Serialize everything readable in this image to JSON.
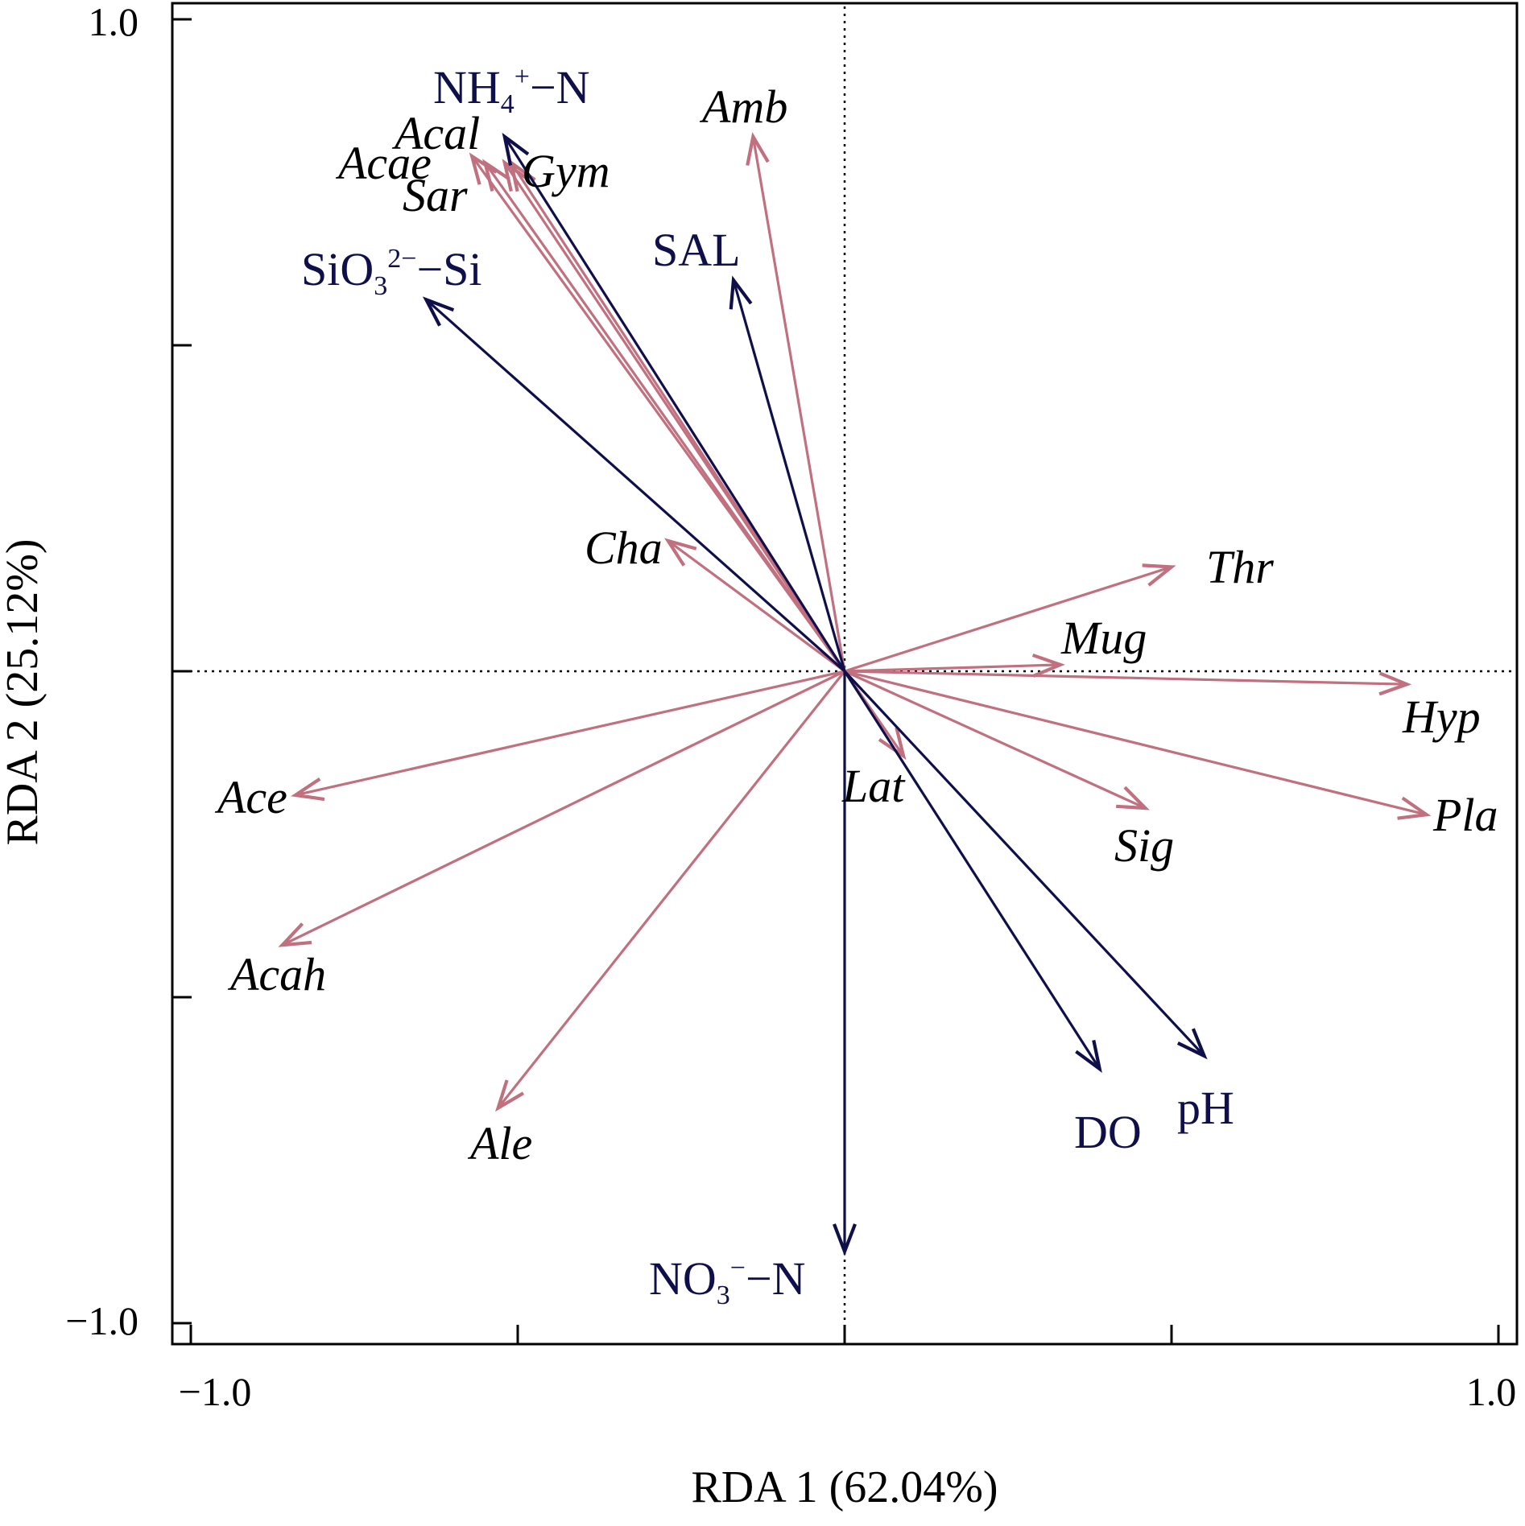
{
  "chart_data": {
    "type": "biplot",
    "xlabel": "RDA 1 (62.04%)",
    "ylabel": "RDA 2 (25.12%)",
    "xlim": [
      -1.0,
      1.0
    ],
    "ylim": [
      -1.0,
      1.0
    ],
    "xticks": [
      -1.0,
      -0.5,
      0,
      0.5,
      1.0
    ],
    "yticks": [
      -1.0,
      -0.5,
      0,
      0.5,
      1.0
    ],
    "xtick_labels": [
      "−1.0",
      "1.0"
    ],
    "ytick_labels": [
      "1.0",
      "−1.0"
    ],
    "zero_lines": "dotted",
    "colors": {
      "environment": "#0f0f4a",
      "species": "#c0707e"
    },
    "environment": [
      {
        "label_parts": [
          {
            "t": "NH"
          },
          {
            "t": "4",
            "sub": true
          },
          {
            "t": "+",
            "sup": true
          },
          {
            "t": "−N"
          }
        ],
        "x": -0.52,
        "y": 0.82
      },
      {
        "label_parts": [
          {
            "t": "SiO"
          },
          {
            "t": "3",
            "sub": true
          },
          {
            "t": "2−",
            "sup": true
          },
          {
            "t": "−Si"
          }
        ],
        "x": -0.64,
        "y": 0.57
      },
      {
        "label_parts": [
          {
            "t": "SAL"
          }
        ],
        "x": -0.17,
        "y": 0.6
      },
      {
        "label_parts": [
          {
            "t": "DO"
          }
        ],
        "x": 0.39,
        "y": -0.61
      },
      {
        "label_parts": [
          {
            "t": "pH"
          }
        ],
        "x": 0.55,
        "y": -0.59
      },
      {
        "label_parts": [
          {
            "t": "NO"
          },
          {
            "t": "3",
            "sub": true
          },
          {
            "t": "−",
            "sup": true
          },
          {
            "t": "−N"
          }
        ],
        "x": 0.0,
        "y": -0.89
      }
    ],
    "species": [
      {
        "label": "Acal",
        "x": -0.52,
        "y": 0.78
      },
      {
        "label": "Acae",
        "x": -0.57,
        "y": 0.79
      },
      {
        "label": "Sar",
        "x": -0.55,
        "y": 0.78
      },
      {
        "label": "Gym",
        "x": -0.51,
        "y": 0.78
      },
      {
        "label": "Amb",
        "x": -0.14,
        "y": 0.82
      },
      {
        "label": "Cha",
        "x": -0.27,
        "y": 0.2
      },
      {
        "label": "Thr",
        "x": 0.5,
        "y": 0.16
      },
      {
        "label": "Mug",
        "x": 0.33,
        "y": 0.01
      },
      {
        "label": "Hyp",
        "x": 0.86,
        "y": -0.02
      },
      {
        "label": "Pla",
        "x": 0.89,
        "y": -0.22
      },
      {
        "label": "Sig",
        "x": 0.46,
        "y": -0.21
      },
      {
        "label": "Lat",
        "x": 0.09,
        "y": -0.13
      },
      {
        "label": "Ace",
        "x": -0.84,
        "y": -0.19
      },
      {
        "label": "Acah",
        "x": -0.86,
        "y": -0.42
      },
      {
        "label": "Ale",
        "x": -0.53,
        "y": -0.67
      }
    ]
  }
}
